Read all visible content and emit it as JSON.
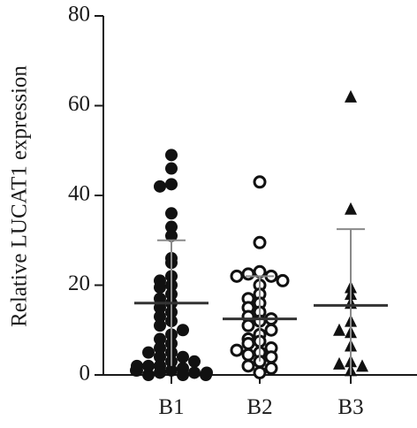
{
  "chart_data": {
    "type": "scatter",
    "subtype": "dot-plot with mean and SD",
    "ylabel": "Relative LUCAT1 expression",
    "xlabel": "",
    "ylim": [
      0,
      80
    ],
    "yticks": [
      "0",
      "20",
      "40",
      "60",
      "80"
    ],
    "categories": [
      "B1",
      "B2",
      "B3"
    ],
    "grid": false,
    "series": [
      {
        "category": "B1",
        "marker": "filled-circle",
        "color": "#111111",
        "mean": 16,
        "sd_upper": 30,
        "sd_lower": 2,
        "values": [
          49,
          46,
          42.5,
          42,
          36,
          33,
          31,
          26,
          25,
          22,
          21,
          20,
          19.5,
          18,
          17,
          16,
          15,
          14,
          13,
          12,
          11,
          10,
          9,
          8,
          7,
          6,
          5,
          4,
          3,
          2,
          1.5,
          1,
          0.5,
          0,
          0,
          0.5,
          1,
          2,
          3,
          4,
          5,
          0,
          1,
          2,
          0.5
        ]
      },
      {
        "category": "B2",
        "marker": "open-circle",
        "color": "#111111",
        "mean": 12.5,
        "sd_upper": 22,
        "sd_lower": 3,
        "values": [
          43,
          29.5,
          23,
          22.5,
          22,
          22,
          21,
          20,
          18,
          17,
          16,
          15,
          14,
          13,
          12.5,
          12,
          11,
          10,
          9,
          8,
          7.5,
          7,
          6,
          5.5,
          5,
          4.5,
          4,
          3,
          2,
          1.5,
          0.5
        ]
      },
      {
        "category": "B3",
        "marker": "filled-triangle",
        "color": "#111111",
        "mean": 15.5,
        "sd_upper": 32.5,
        "sd_lower": 0,
        "values": [
          62,
          37,
          19.5,
          18,
          16,
          12,
          10,
          9.5,
          6.5,
          3,
          2.5,
          2,
          1
        ]
      }
    ]
  }
}
